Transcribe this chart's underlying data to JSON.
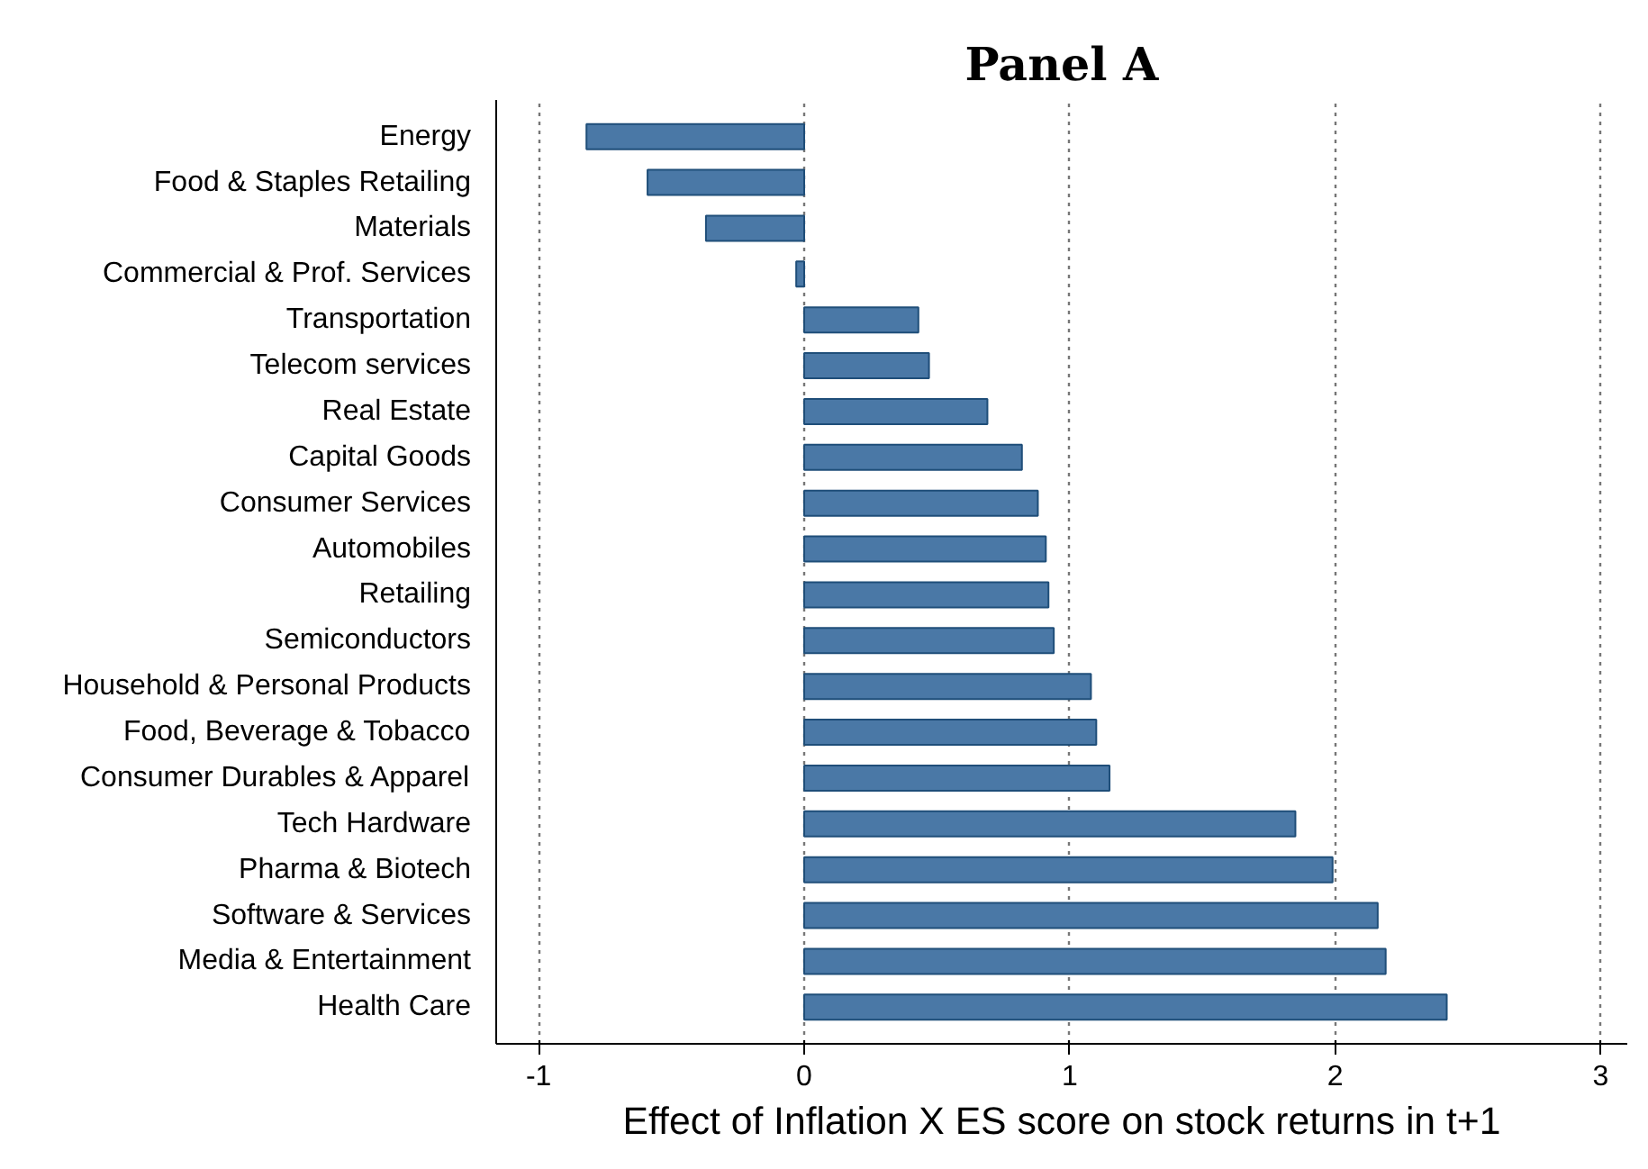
{
  "chart_data": {
    "type": "bar",
    "orientation": "horizontal",
    "title": "Panel A",
    "xlabel": "Effect of Inflation X ES score on stock returns in t+1",
    "categories": [
      "Energy",
      "Food & Staples Retailing",
      "Materials",
      "Commercial & Prof. Services",
      "Transportation",
      "Telecom services",
      "Real Estate",
      "Capital Goods",
      "Consumer Services",
      "Automobiles",
      "Retailing",
      "Semiconductors",
      "Household & Personal Products",
      "Food, Beverage & Tobacco",
      "Consumer Durables & Apparel",
      "Tech Hardware",
      "Pharma & Biotech",
      "Software & Services",
      "Media & Entertainment",
      "Health Care"
    ],
    "values": [
      -0.82,
      -0.59,
      -0.37,
      -0.03,
      0.43,
      0.47,
      0.69,
      0.82,
      0.88,
      0.91,
      0.92,
      0.94,
      1.08,
      1.1,
      1.15,
      1.85,
      1.99,
      2.16,
      2.19,
      2.42
    ],
    "color": "#4a78a6",
    "xlim": [
      -1.16,
      3.1
    ],
    "xticks": [
      -1,
      0,
      1,
      2,
      3
    ],
    "grid": "x"
  }
}
